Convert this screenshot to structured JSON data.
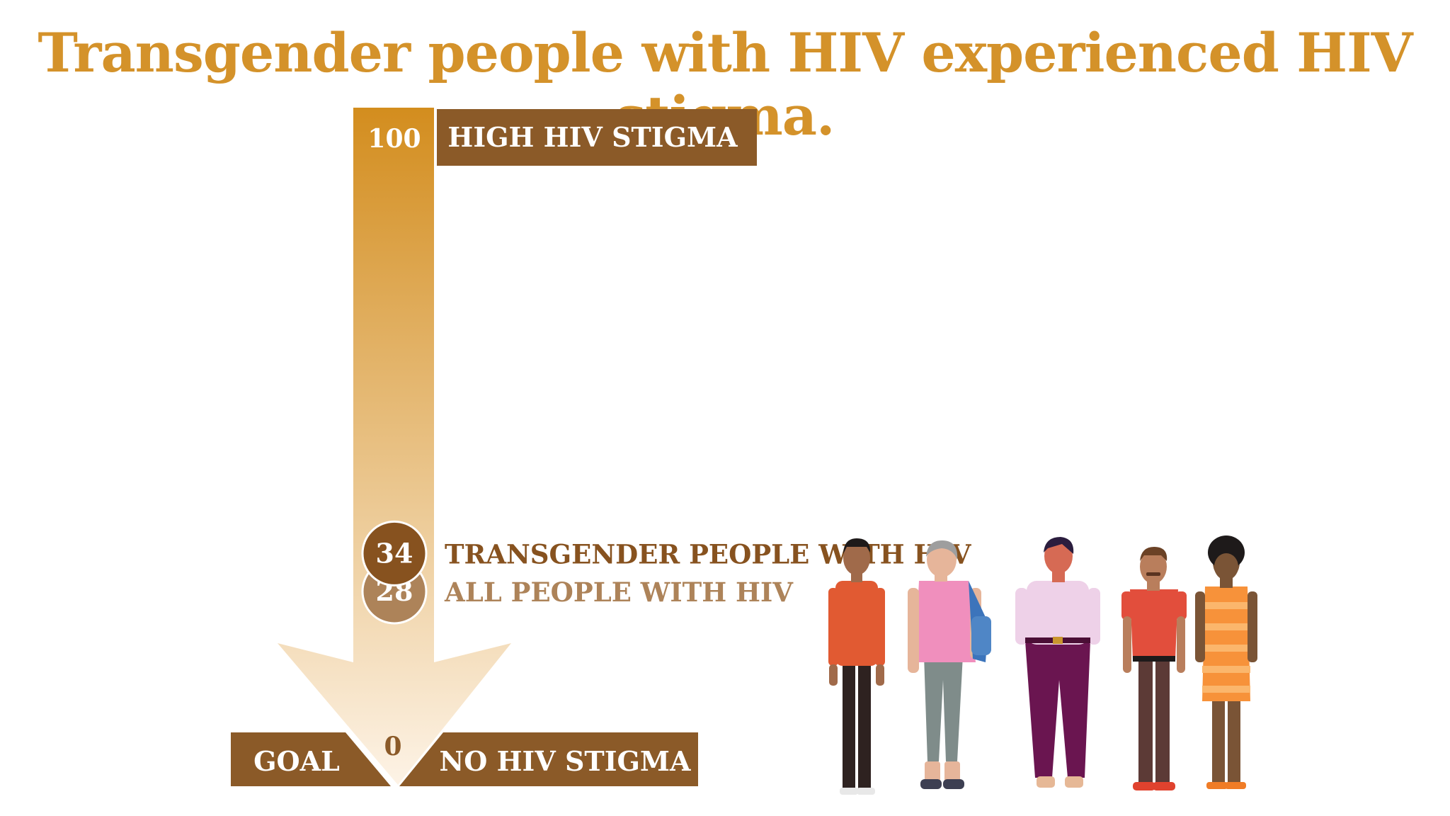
{
  "title": "Transgender people with HIV experienced HIV stigma.",
  "chart_data": {
    "type": "bar",
    "scale": {
      "min": 0,
      "max": 100,
      "min_label": "0",
      "max_label": "100"
    },
    "top_label": "HIGH HIV STIGMA",
    "bottom_left_label": "GOAL",
    "bottom_right_label": "NO HIV STIGMA",
    "series": [
      {
        "name": "TRANSGENDER PEOPLE WITH HIV",
        "value": 34,
        "value_label": "34"
      },
      {
        "name": "ALL PEOPLE WITH HIV",
        "value": 28,
        "value_label": "28"
      }
    ]
  },
  "colors": {
    "title": "#d4922a",
    "arrow_top": "#d38d1e",
    "arrow_bottom": "#fdf3e6",
    "brown_box": "#8b5a28",
    "series_dark": "#87521f",
    "series_light": "#ad8359"
  },
  "illustration": {
    "icon": "group-of-people-illustration"
  }
}
